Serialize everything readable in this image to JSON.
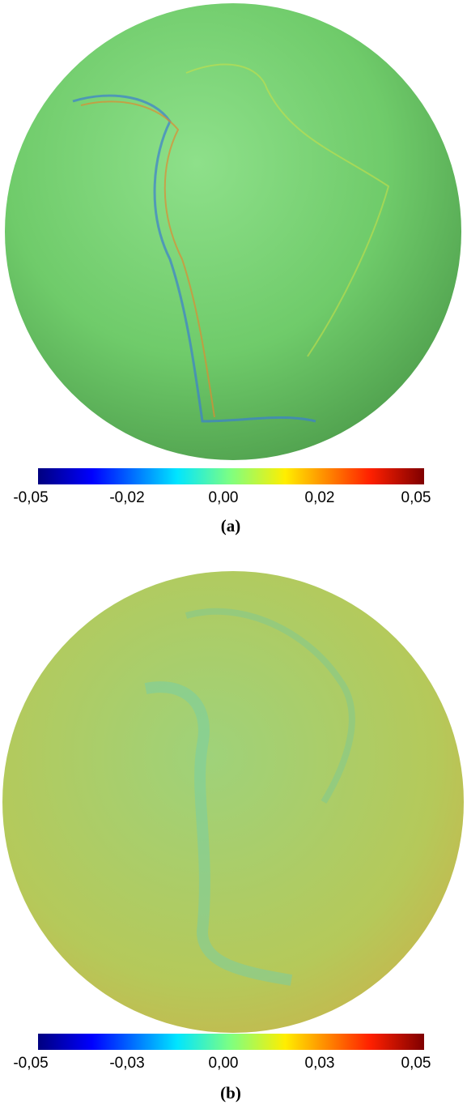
{
  "panels": [
    {
      "colorbar_ticks": [
        "-0,05",
        "-0,02",
        "0,00",
        "0,02",
        "0,05"
      ],
      "caption": "(a)"
    },
    {
      "colorbar_ticks": [
        "-0,05",
        "-0,03",
        "0,00",
        "0,03",
        "0,05"
      ],
      "caption": "(b)"
    }
  ]
}
